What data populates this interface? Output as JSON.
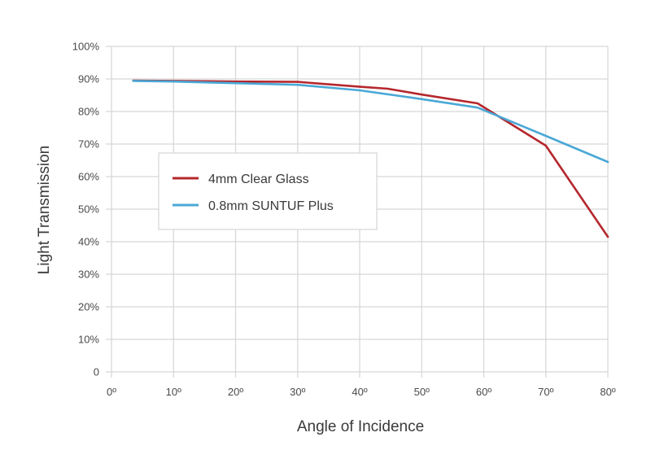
{
  "chart_data": {
    "type": "line",
    "title": "",
    "xlabel": "Angle of Incidence",
    "ylabel": "Light Transmission",
    "x_ticks": [
      "0º",
      "10º",
      "20º",
      "30º",
      "40º",
      "50º",
      "60º",
      "70º",
      "80º"
    ],
    "y_ticks": [
      "0",
      "10%",
      "20%",
      "30%",
      "40%",
      "50%",
      "60%",
      "70%",
      "80%",
      "90%",
      "100%"
    ],
    "xlim": [
      0,
      80
    ],
    "ylim": [
      0,
      100
    ],
    "grid": true,
    "legend_position": "center-left",
    "series": [
      {
        "name": "4mm Clear Glass",
        "color": "#b5272d",
        "x": [
          3.5,
          10,
          20,
          30,
          40,
          44.5,
          50,
          59,
          70,
          80
        ],
        "y": [
          89.5,
          89.4,
          89.2,
          89.1,
          87.6,
          87.0,
          85.2,
          82.5,
          69.5,
          41.5
        ]
      },
      {
        "name": "0.8mm SUNTUF Plus",
        "color": "#4aa8d6",
        "x": [
          3.5,
          10,
          20,
          30,
          40,
          50,
          59,
          70,
          80
        ],
        "y": [
          89.4,
          89.2,
          88.7,
          88.2,
          86.5,
          83.8,
          81.2,
          72.5,
          64.5
        ]
      }
    ],
    "grid_color": "#d6d6d6"
  }
}
